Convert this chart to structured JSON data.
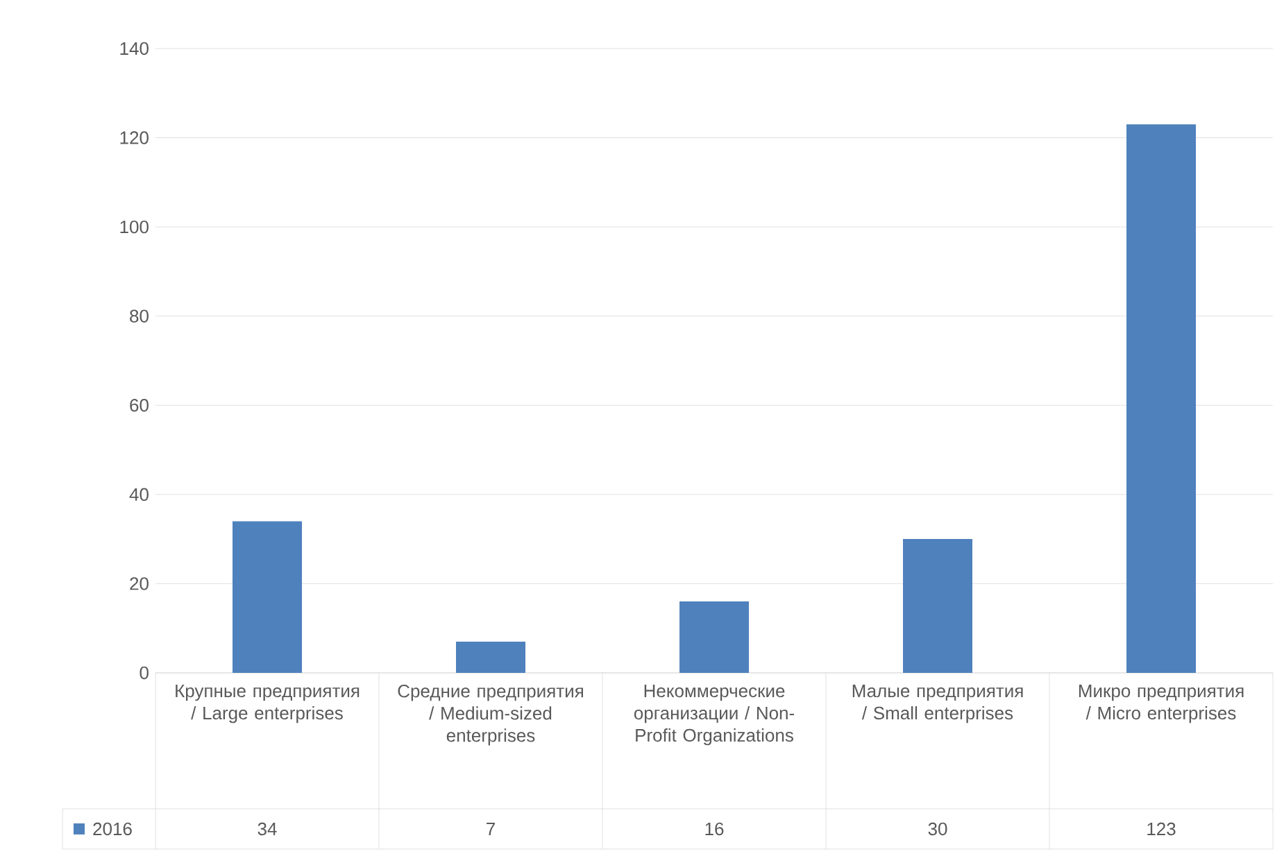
{
  "chart_data": {
    "type": "bar",
    "categories": [
      "Крупные предприятия / Large enterprises",
      "Средние предприятия / Medium-sized enterprises",
      "Некоммерческие организации / Non-Profit Organizations",
      "Малые предприятия / Small enterprises",
      "Микро предприятия / Micro enterprises"
    ],
    "series": [
      {
        "name": "2016",
        "color": "#4f81bd",
        "values": [
          34,
          7,
          16,
          30,
          123
        ]
      }
    ],
    "ylim": [
      0,
      140
    ],
    "yticks": [
      0,
      20,
      40,
      60,
      80,
      100,
      120,
      140
    ],
    "grid": "y",
    "legend": "bottom",
    "data_labels": true
  }
}
